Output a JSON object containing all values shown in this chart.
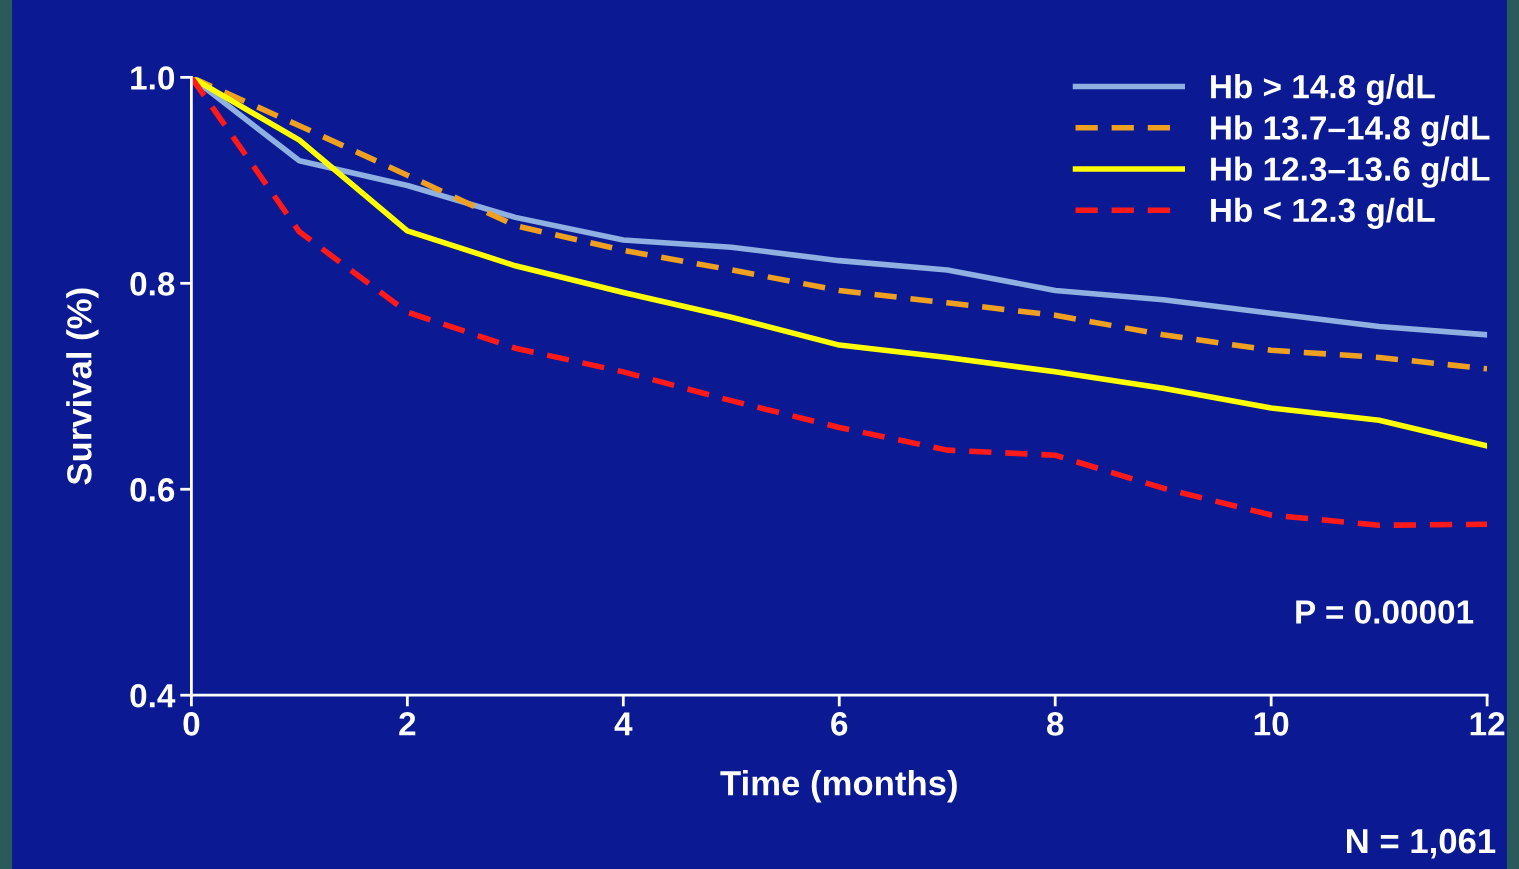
{
  "chart_data": {
    "type": "line",
    "xlabel": "Time (months)",
    "ylabel": "Survival (%)",
    "x": [
      0,
      1,
      2,
      3,
      4,
      5,
      6,
      7,
      8,
      9,
      10,
      11,
      12
    ],
    "series": [
      {
        "name": "Hb > 14.8 g/dL",
        "color": "#8fb0e0",
        "line_style": "solid",
        "values": [
          1.0,
          0.919,
          0.895,
          0.864,
          0.842,
          0.835,
          0.822,
          0.813,
          0.793,
          0.784,
          0.771,
          0.758,
          0.75
        ]
      },
      {
        "name": "Hb 13.7–14.8 g/dL",
        "color": "#f0a020",
        "line_style": "dashed",
        "values": [
          1.0,
          0.953,
          0.905,
          0.856,
          0.832,
          0.813,
          0.793,
          0.781,
          0.769,
          0.75,
          0.735,
          0.728,
          0.717
        ]
      },
      {
        "name": "Hb 12.3–13.6 g/dL",
        "color": "#ffff00",
        "line_style": "solid",
        "values": [
          1.0,
          0.939,
          0.851,
          0.817,
          0.791,
          0.767,
          0.74,
          0.728,
          0.714,
          0.698,
          0.679,
          0.667,
          0.642
        ]
      },
      {
        "name": "Hb < 12.3 g/dL",
        "color": "#ff1a1a",
        "line_style": "dashed",
        "values": [
          1.0,
          0.85,
          0.772,
          0.737,
          0.714,
          0.686,
          0.66,
          0.638,
          0.633,
          0.601,
          0.575,
          0.565,
          0.566
        ]
      }
    ],
    "xlim": [
      0,
      12
    ],
    "xticks": [
      0,
      2,
      4,
      6,
      8,
      10,
      12
    ],
    "ylim": [
      0.4,
      1.0
    ],
    "yticks": [
      {
        "value": 0.4,
        "label": "0.4"
      },
      {
        "value": 0.6,
        "label": "0.6"
      },
      {
        "value": 0.8,
        "label": "0.8"
      },
      {
        "value": 1.0,
        "label": "1.0"
      }
    ],
    "grid": false,
    "legend": "top right",
    "marker": "none",
    "annotations": [
      "P = 0.00001",
      "N = 1,061"
    ]
  }
}
